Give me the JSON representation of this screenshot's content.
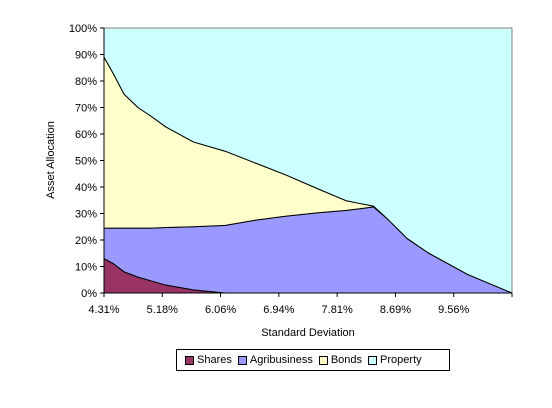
{
  "chart_data": {
    "type": "area",
    "stacked": true,
    "xlabel": "Standard Deviation",
    "ylabel": "Asset Allocation",
    "ylim": [
      0,
      100
    ],
    "y_ticks": [
      "0%",
      "10%",
      "20%",
      "30%",
      "40%",
      "50%",
      "60%",
      "70%",
      "80%",
      "90%",
      "100%"
    ],
    "x_tick_labels": [
      "4.31%",
      "5.18%",
      "6.06%",
      "6.94%",
      "7.81%",
      "8.69%",
      "9.56%"
    ],
    "x": [
      4.31,
      4.45,
      4.6,
      4.8,
      5.0,
      5.2,
      5.6,
      6.06,
      6.5,
      6.94,
      7.4,
      7.81,
      8.0,
      8.2,
      8.4,
      8.69,
      9.0,
      9.56,
      10.2
    ],
    "series": [
      {
        "name": "Shares",
        "color": "#993366",
        "values": [
          13,
          11,
          8,
          6,
          4.5,
          3,
          1.2,
          0,
          0,
          0,
          0,
          0,
          0,
          0,
          0,
          0,
          0,
          0,
          0
        ]
      },
      {
        "name": "Agribusiness",
        "color": "#9999ff",
        "values": [
          11.5,
          13.5,
          16.5,
          18.5,
          20,
          21.7,
          23.8,
          25.5,
          27.5,
          29,
          30.3,
          31.2,
          31.8,
          32.5,
          28,
          20.5,
          15,
          7,
          0
        ]
      },
      {
        "name": "Bonds",
        "color": "#ffffcc",
        "values": [
          64.5,
          58,
          50.5,
          45.5,
          42,
          38,
          32,
          28,
          21.5,
          15.5,
          9,
          3.6,
          2,
          0.3,
          0,
          0,
          0,
          0,
          0
        ]
      },
      {
        "name": "Property",
        "color": "#ccffff",
        "values": [
          11,
          17.5,
          25,
          30,
          33.5,
          37.3,
          43,
          46.5,
          51,
          55.5,
          60.7,
          65.2,
          66.2,
          67.2,
          72,
          79.5,
          85,
          93,
          100
        ]
      }
    ],
    "legend_position": "bottom",
    "grid": false
  }
}
